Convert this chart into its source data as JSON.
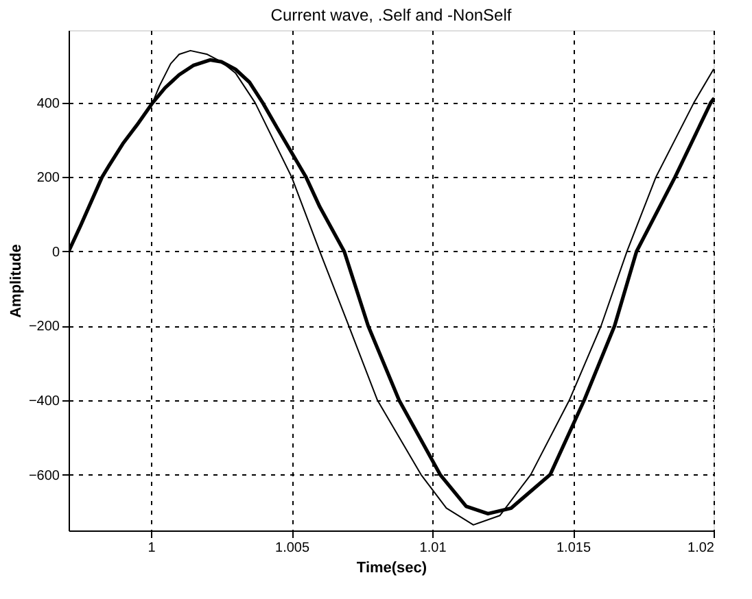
{
  "chart_data": {
    "type": "line",
    "title": "Current wave,   .Self  and  -NonSelf",
    "xlabel": "Time(sec)",
    "ylabel": "Amplitude",
    "xlim": [
      0.99707,
      1.02
    ],
    "ylim": [
      -750,
      595
    ],
    "xticks": [
      1,
      1.005,
      1.01,
      1.015,
      1.02
    ],
    "yticks": [
      -600,
      -400,
      -200,
      0,
      200,
      400
    ],
    "grid": true,
    "marker": "none",
    "line_style": "solid",
    "series": [
      {
        "color": "#000000",
        "x": [
          0.99707,
          0.9975,
          0.99826,
          0.9985,
          0.999,
          0.9995,
          1.00006,
          1.0005,
          1.001,
          1.0015,
          1.0021,
          1.0025,
          1.003,
          1.0035,
          1.00397,
          1.0045,
          1.00551,
          1.006,
          1.00687,
          1.00772,
          1.00882,
          1.01028,
          1.0112,
          1.01198,
          1.0128,
          1.01419,
          1.0154,
          1.01648,
          1.01726,
          1.01863,
          1.0199,
          1.02
        ],
        "values": [
          0,
          70,
          200,
          230,
          290,
          340,
          400,
          440,
          475,
          500,
          515,
          510,
          490,
          455,
          400,
          330,
          200,
          120,
          0,
          -200,
          -400,
          -600,
          -685,
          -705,
          -690,
          -600,
          -400,
          -200,
          0,
          200,
          400,
          410
        ]
      },
      {
        "color": "#000000",
        "x": [
          0.99707,
          0.99826,
          0.999,
          0.9995,
          1.0,
          1.0003,
          1.0007,
          1.001,
          1.0014,
          1.002,
          1.0025,
          1.003,
          1.0037,
          1.005,
          1.006,
          1.00703,
          1.00805,
          1.0096,
          1.0105,
          1.01146,
          1.0124,
          1.0135,
          1.01487,
          1.016,
          1.01692,
          1.01795,
          1.0193,
          1.02
        ],
        "values": [
          0,
          200,
          290,
          340,
          390,
          445,
          505,
          530,
          540,
          530,
          510,
          480,
          400,
          200,
          0,
          -200,
          -400,
          -600,
          -690,
          -735,
          -710,
          -600,
          -400,
          -200,
          0,
          200,
          400,
          490
        ]
      }
    ]
  }
}
